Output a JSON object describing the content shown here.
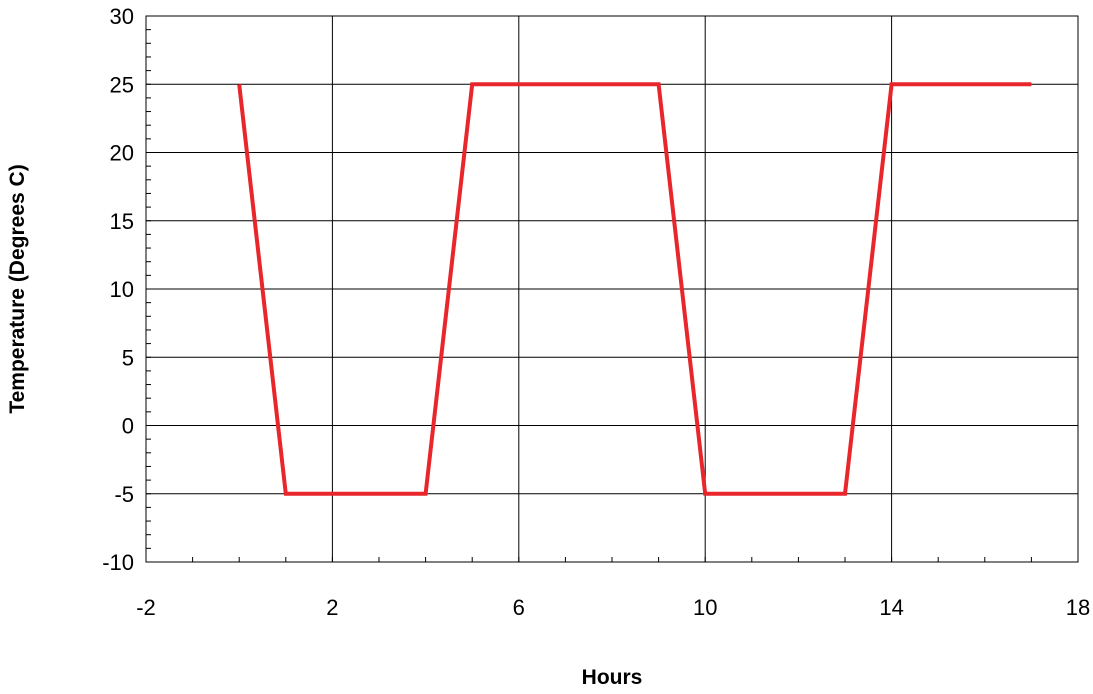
{
  "chart_data": {
    "type": "line",
    "title": "",
    "xlabel": "Hours",
    "ylabel": "Temperature (Degrees C)",
    "xlim": [
      -2,
      18
    ],
    "ylim": [
      -10,
      30
    ],
    "x_ticks": [
      -2,
      2,
      6,
      10,
      14,
      18
    ],
    "y_ticks": [
      -10,
      -5,
      0,
      5,
      10,
      15,
      20,
      25,
      30
    ],
    "x_minor_step": 1,
    "y_minor_step": 1,
    "grid": true,
    "legend": "none",
    "series": [
      {
        "color": "#e8262b",
        "x": [
          0,
          1,
          2,
          3,
          4,
          5,
          6,
          7,
          8,
          9,
          10,
          11,
          12,
          13,
          14,
          15,
          16,
          17
        ],
        "y": [
          25,
          -5,
          -5,
          -5,
          -5,
          25,
          25,
          25,
          25,
          25,
          -5,
          -5,
          -5,
          -5,
          25,
          25,
          25,
          25
        ]
      }
    ]
  }
}
